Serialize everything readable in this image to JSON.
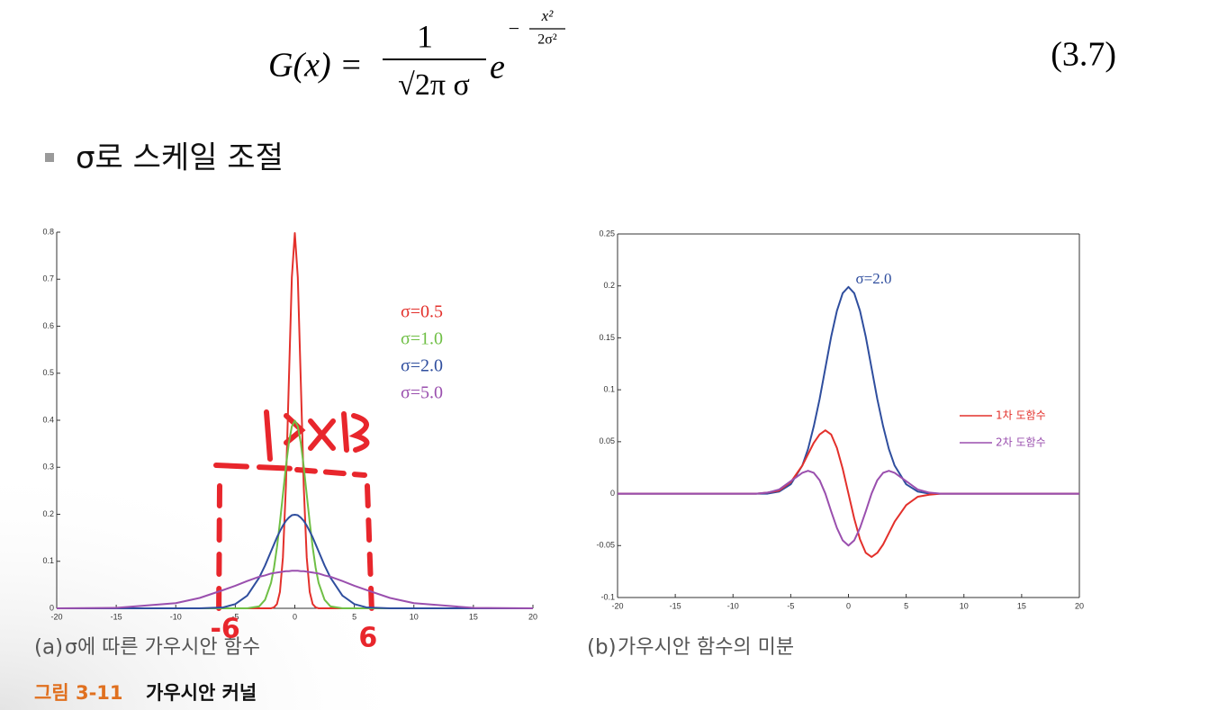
{
  "formula": {
    "lhs": "G(x) =",
    "numerator": "1",
    "denominator": "√2π σ",
    "base": "e",
    "exponent_sign": "−",
    "exponent_numerator": "x²",
    "exponent_denominator": "2σ²",
    "number": "(3.7)"
  },
  "bullet": "σ로 스케일 조절",
  "chart_data": [
    {
      "type": "line",
      "caption_label": "(a)",
      "caption": "σ에 따른 가우시안 함수",
      "x": [
        -20,
        -15,
        -10,
        -8,
        -6,
        -5,
        -4,
        -3,
        -2.5,
        -2,
        -1.75,
        -1.5,
        -1.25,
        -1,
        -0.75,
        -0.5,
        -0.25,
        0,
        0.25,
        0.5,
        0.75,
        1,
        1.25,
        1.5,
        1.75,
        2,
        2.5,
        3,
        4,
        5,
        6,
        8,
        10,
        15,
        20
      ],
      "series": [
        {
          "name": "σ=0.5",
          "color": "#e3302b",
          "values": [
            0,
            0,
            0,
            0,
            0,
            0,
            0,
            0,
            0,
            0,
            0.002,
            0.009,
            0.035,
            0.108,
            0.259,
            0.484,
            0.704,
            0.798,
            0.704,
            0.484,
            0.259,
            0.108,
            0.035,
            0.009,
            0.002,
            0,
            0,
            0,
            0,
            0,
            0,
            0,
            0,
            0,
            0
          ]
        },
        {
          "name": "σ=1.0",
          "color": "#6fbf45",
          "values": [
            0,
            0,
            0,
            0,
            0,
            0,
            0,
            0.004,
            0.018,
            0.054,
            0.086,
            0.13,
            0.183,
            0.242,
            0.301,
            0.352,
            0.387,
            0.399,
            0.387,
            0.352,
            0.301,
            0.242,
            0.183,
            0.13,
            0.086,
            0.054,
            0.018,
            0.004,
            0,
            0,
            0,
            0,
            0,
            0,
            0
          ]
        },
        {
          "name": "σ=2.0",
          "color": "#2f4e9e",
          "values": [
            0,
            0,
            0,
            0,
            0.002,
            0.009,
            0.027,
            0.065,
            0.091,
            0.121,
            0.136,
            0.151,
            0.164,
            0.176,
            0.186,
            0.193,
            0.198,
            0.199,
            0.198,
            0.193,
            0.186,
            0.176,
            0.164,
            0.151,
            0.136,
            0.121,
            0.091,
            0.065,
            0.027,
            0.009,
            0.002,
            0,
            0,
            0,
            0
          ]
        },
        {
          "name": "σ=5.0",
          "color": "#9a4fae",
          "values": [
            0,
            0.001,
            0.011,
            0.022,
            0.039,
            0.048,
            0.058,
            0.067,
            0.07,
            0.074,
            0.075,
            0.076,
            0.077,
            0.078,
            0.079,
            0.079,
            0.08,
            0.08,
            0.08,
            0.079,
            0.079,
            0.078,
            0.077,
            0.076,
            0.075,
            0.074,
            0.07,
            0.067,
            0.058,
            0.048,
            0.039,
            0.022,
            0.011,
            0.001,
            0
          ]
        }
      ],
      "xlim": [
        -20,
        20
      ],
      "xticks": [
        -20,
        -15,
        -10,
        -5,
        0,
        5,
        10,
        15,
        20
      ],
      "ylim": [
        0,
        0.8
      ],
      "yticks": [
        0,
        0.1,
        0.2,
        0.3,
        0.4,
        0.5,
        0.6,
        0.7,
        0.8
      ],
      "legend": "text",
      "box": false,
      "annotations": [
        "-6",
        "6"
      ]
    },
    {
      "type": "line",
      "caption_label": "(b)",
      "caption": "가우시안 함수의 미분",
      "x": [
        -20,
        -15,
        -10,
        -8,
        -7,
        -6,
        -5,
        -4,
        -3.5,
        -3,
        -2.5,
        -2,
        -1.5,
        -1,
        -0.5,
        0,
        0.5,
        1,
        1.5,
        2,
        2.5,
        3,
        3.5,
        4,
        5,
        6,
        7,
        8,
        10,
        15,
        20
      ],
      "series": [
        {
          "name": "σ=2.0",
          "color": "#2f4e9e",
          "inline_label": true,
          "values": [
            0,
            0,
            0,
            0,
            0,
            0.002,
            0.009,
            0.027,
            0.043,
            0.065,
            0.091,
            0.121,
            0.151,
            0.176,
            0.193,
            0.199,
            0.193,
            0.176,
            0.151,
            0.121,
            0.091,
            0.065,
            0.043,
            0.027,
            0.009,
            0.002,
            0,
            0,
            0,
            0,
            0
          ]
        },
        {
          "name": "1차 도함수",
          "color": "#e3302b",
          "values": [
            0,
            0,
            0,
            0,
            0.001,
            0.003,
            0.011,
            0.027,
            0.038,
            0.049,
            0.057,
            0.061,
            0.057,
            0.044,
            0.024,
            0,
            -0.024,
            -0.044,
            -0.057,
            -0.061,
            -0.057,
            -0.049,
            -0.038,
            -0.027,
            -0.011,
            -0.003,
            -0.001,
            0,
            0,
            0,
            0
          ]
        },
        {
          "name": "2차 도함수",
          "color": "#9a4fae",
          "values": [
            0,
            0,
            0,
            0,
            0.001,
            0.004,
            0.012,
            0.02,
            0.022,
            0.02,
            0.013,
            0,
            -0.017,
            -0.033,
            -0.045,
            -0.05,
            -0.045,
            -0.033,
            -0.017,
            0,
            0.013,
            0.02,
            0.022,
            0.02,
            0.012,
            0.004,
            0.001,
            0,
            0,
            0,
            0
          ]
        }
      ],
      "xlim": [
        -20,
        20
      ],
      "xticks": [
        -20,
        -15,
        -10,
        -5,
        0,
        5,
        10,
        15,
        20
      ],
      "ylim": [
        -0.1,
        0.25
      ],
      "yticks": [
        -0.1,
        -0.05,
        0,
        0.05,
        0.1,
        0.15,
        0.2,
        0.25
      ],
      "legend": "line",
      "box": true
    }
  ],
  "figure": {
    "label": "그림 3-11",
    "title": "가우시안 커널"
  }
}
